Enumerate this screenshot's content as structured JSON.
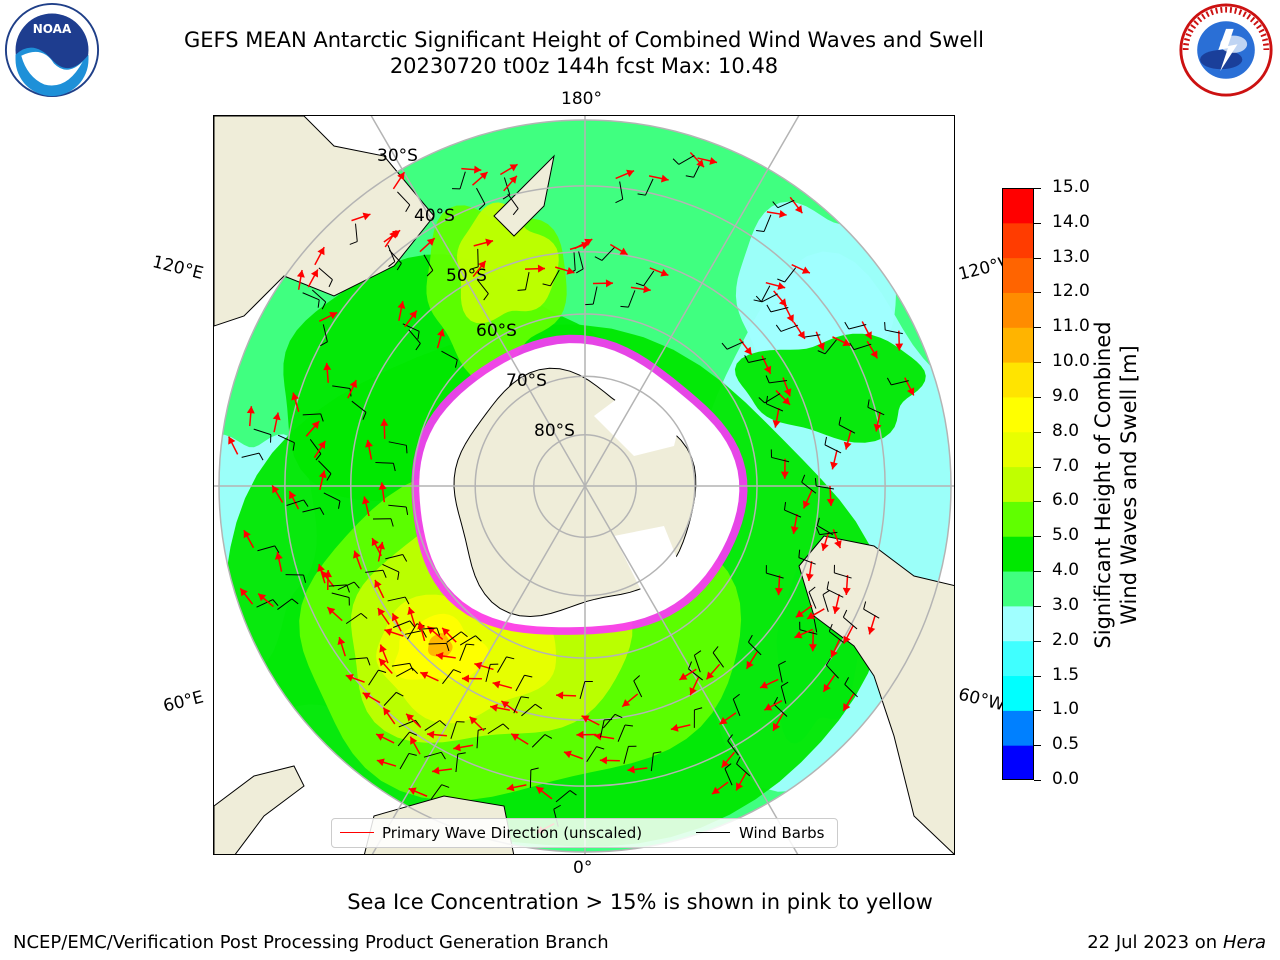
{
  "header": {
    "title_line1": "GEFS MEAN Antarctic Significant Height of Combined Wind Waves and Swell",
    "title_line2": "20230720 t00z 144h fcst   Max: 10.48"
  },
  "logos": {
    "left": "noaa-logo",
    "right": "nws-logo"
  },
  "map": {
    "projection": "south-polar-stereographic",
    "lon_labels": [
      "180°",
      "120°E",
      "120°W",
      "60°E",
      "60°W",
      "0°"
    ],
    "lat_labels": [
      "30°S",
      "40°S",
      "50°S",
      "60°S",
      "70°S",
      "80°S"
    ],
    "colors": {
      "land": "#efedd9",
      "sea_ice": "#ffffff",
      "ice_edge": "#ff33ff",
      "grid": "#b4b4b4",
      "arrows": "#ff0000",
      "barbs": "#000000"
    }
  },
  "colorbar": {
    "ticks": [
      "15.0",
      "14.0",
      "13.0",
      "12.0",
      "11.0",
      "10.0",
      "9.0",
      "8.0",
      "7.0",
      "6.0",
      "5.0",
      "4.0",
      "3.0",
      "2.0",
      "1.5",
      "1.0",
      "0.5",
      "0.0"
    ],
    "colors_bottom_to_top": [
      "#0000ff",
      "#0080ff",
      "#00ffff",
      "#40ffff",
      "#a0ffff",
      "#40ff80",
      "#00e800",
      "#60ff00",
      "#c0ff00",
      "#e8ff00",
      "#ffff00",
      "#ffe400",
      "#ffb400",
      "#ff8c00",
      "#ff6400",
      "#ff3c00",
      "#ff0000"
    ],
    "label_line1": "Significant Height of Combined",
    "label_line2": "Wind Waves and Swell [m]"
  },
  "legend": {
    "wave_direction": "Primary Wave Direction (unscaled)",
    "wind_barbs": "Wind Barbs",
    "wave_color": "#ff0000",
    "barb_color": "#000000"
  },
  "footer": {
    "ice_note": "Sea Ice Concentration > 15% is shown in pink to yellow",
    "credit": "NCEP/EMC/Verification Post Processing Product Generation Branch",
    "date_prefix": "22 Jul 2023 on ",
    "machine": "Hera"
  }
}
